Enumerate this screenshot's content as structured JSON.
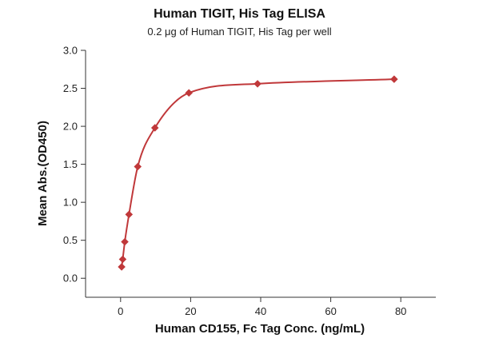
{
  "chart": {
    "title": "Human TIGIT, His Tag ELISA",
    "subtitle": "0.2 μg of Human TIGIT, His Tag per well"
  },
  "colors": {
    "series": "#c0383a",
    "axis": "#333333",
    "text": "#111111"
  },
  "chart_data": {
    "type": "scatter",
    "title": "Human TIGIT, His Tag ELISA",
    "subtitle": "0.2 μg of Human TIGIT, His Tag per well",
    "xlabel": "Human CD155, Fc Tag Conc. (ng/mL)",
    "ylabel": "Mean Abs.(OD450)",
    "xlim": [
      -10,
      90
    ],
    "ylim": [
      -0.25,
      3.0
    ],
    "x_ticks": [
      0,
      20,
      40,
      60,
      80
    ],
    "x_tick_labels": [
      "0",
      "20",
      "40",
      "60",
      "80"
    ],
    "y_ticks": [
      0.0,
      0.5,
      1.0,
      1.5,
      2.0,
      2.5,
      3.0
    ],
    "y_tick_labels": [
      "0.0",
      "0.5",
      "1.0",
      "1.5",
      "2.0",
      "2.5",
      "3.0"
    ],
    "grid": false,
    "legend": "none",
    "marker": "diamond",
    "series": [
      {
        "x": [
          0.3,
          0.6,
          1.2,
          2.4,
          4.9,
          9.8,
          19.5,
          39.1,
          78.1
        ],
        "y": [
          0.15,
          0.25,
          0.48,
          0.84,
          1.47,
          1.98,
          2.44,
          2.56,
          2.62
        ],
        "fit": "4PL"
      }
    ]
  }
}
